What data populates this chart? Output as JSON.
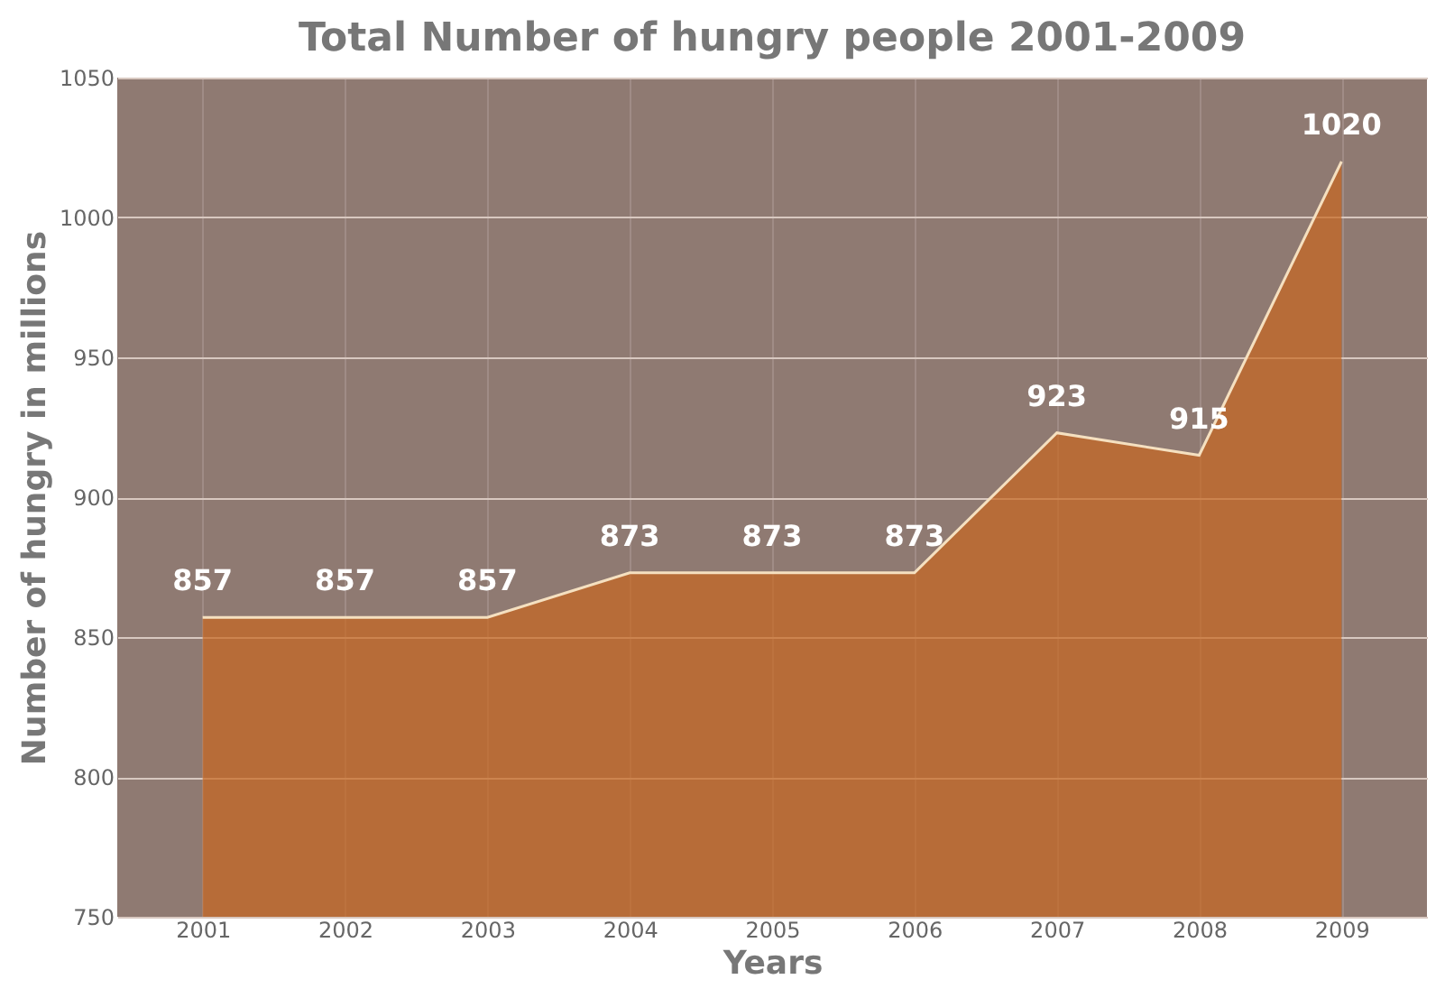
{
  "chart_data": {
    "type": "area",
    "title": "Total Number of hungry people 2001-2009",
    "xlabel": "Years",
    "ylabel": "Number of hungry in millions",
    "categories": [
      "2001",
      "2002",
      "2003",
      "2004",
      "2005",
      "2006",
      "2007",
      "2008",
      "2009"
    ],
    "series": [
      {
        "color": "#c8661f",
        "values": [
          857,
          857,
          857,
          873,
          873,
          873,
          923,
          915,
          1020
        ]
      }
    ],
    "ylim": [
      750,
      1050
    ],
    "yticks": [
      750,
      800,
      850,
      900,
      950,
      1000,
      1050
    ],
    "grid": true,
    "data_labels": true
  }
}
